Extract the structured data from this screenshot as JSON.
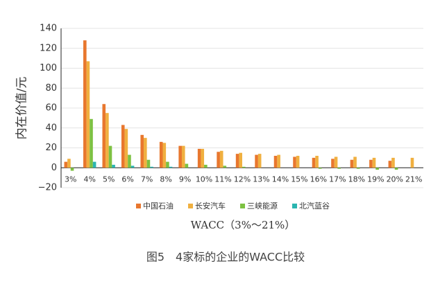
{
  "chart_data": {
    "type": "bar",
    "y_label": "内在价值/元",
    "x_label": "WACC（3%～21%）",
    "caption": "图5　4家标的企业的WACC比较",
    "categories": [
      "3%",
      "4%",
      "5%",
      "6%",
      "7%",
      "8%",
      "9%",
      "10%",
      "11%",
      "12%",
      "13%",
      "14%",
      "15%",
      "16%",
      "17%",
      "18%",
      "19%",
      "20%",
      "21%"
    ],
    "series": [
      {
        "name": "中国石油",
        "color": "#e8772e",
        "values": [
          6,
          128,
          64,
          43,
          33,
          26,
          22,
          19,
          16,
          14,
          13,
          12,
          11,
          10,
          9,
          8,
          8,
          7,
          null
        ]
      },
      {
        "name": "长安汽车",
        "color": "#f0b040",
        "values": [
          9,
          107,
          55,
          39,
          30,
          25,
          22,
          19,
          17,
          15,
          14,
          13,
          12,
          12,
          11,
          11,
          10,
          10,
          10
        ]
      },
      {
        "name": "三峡能源",
        "color": "#7dc142",
        "values": [
          -3,
          49,
          22,
          13,
          8,
          6,
          4,
          3,
          2,
          1,
          0,
          0,
          0,
          -1,
          -1,
          -1,
          -2,
          -2,
          null
        ]
      },
      {
        "name": "北汽蓝谷",
        "color": "#2ab5b0",
        "values": [
          null,
          6,
          3,
          2,
          1,
          1,
          0,
          0,
          0,
          0,
          0,
          0,
          0,
          0,
          0,
          0,
          0,
          0,
          null
        ]
      }
    ],
    "ylim": [
      -20,
      140
    ],
    "yticks": [
      {
        "value": -20,
        "label": "−20"
      },
      0,
      20,
      40,
      60,
      80,
      100,
      120,
      140
    ],
    "grid": true
  }
}
